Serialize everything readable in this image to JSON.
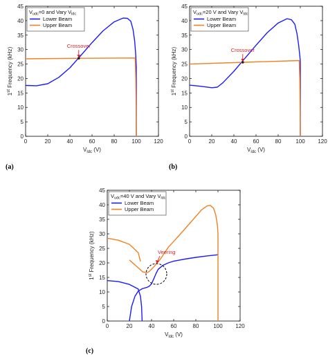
{
  "colors": {
    "lower": "#1a1aff",
    "upper": "#f08020",
    "annotation": "#e02020"
  },
  "chart_data": [
    {
      "panel_label": "(a)",
      "type": "line",
      "title": "V_udc=0 and Vary V_ldc",
      "title_parts": {
        "pre": "V",
        "sub1": "udc",
        "mid": "=0 and Vary V",
        "sub2": "ldc"
      },
      "xlabel": {
        "main": "V",
        "sub": "ldc",
        "unit": " (V)"
      },
      "ylabel": {
        "pre": "1",
        "sup": "st",
        "post": " Frequency (kHz)"
      },
      "xlim": [
        0,
        120
      ],
      "ylim": [
        0,
        45
      ],
      "xticks": [
        0,
        20,
        40,
        60,
        80,
        100,
        120
      ],
      "yticks": [
        0,
        5,
        10,
        15,
        20,
        25,
        30,
        35,
        40,
        45
      ],
      "legend_position": "top-left",
      "annotation": {
        "text": "Crossover",
        "x": 48,
        "y": 27
      },
      "series": [
        {
          "name": "Lower Beam",
          "color": "#1a1aff",
          "points": [
            [
              0,
              17.6
            ],
            [
              10,
              17.5
            ],
            [
              20,
              18.2
            ],
            [
              30,
              20.4
            ],
            [
              40,
              23.7
            ],
            [
              50,
              28
            ],
            [
              60,
              32.4
            ],
            [
              70,
              36.5
            ],
            [
              80,
              39.6
            ],
            [
              88,
              40.9
            ],
            [
              92,
              40.8
            ],
            [
              95,
              39.8
            ],
            [
              97,
              37
            ],
            [
              98.5,
              33
            ],
            [
              99.5,
              28
            ],
            [
              100,
              24
            ],
            [
              100,
              0
            ]
          ]
        },
        {
          "name": "Upper Beam",
          "color": "#f08020",
          "points": [
            [
              0,
              26.8
            ],
            [
              50,
              27
            ],
            [
              99,
              27.1
            ],
            [
              99.5,
              20
            ],
            [
              99.8,
              10
            ],
            [
              100,
              0
            ]
          ]
        }
      ]
    },
    {
      "panel_label": "(b)",
      "type": "line",
      "title": "V_udc=20 V and Vary V_ldc",
      "title_parts": {
        "pre": "V",
        "sub1": "udc",
        "mid": "=20 V and Vary V",
        "sub2": "ldc"
      },
      "xlabel": {
        "main": "V",
        "sub": "ldc",
        "unit": " (V)"
      },
      "ylabel": {
        "pre": "1",
        "sup": "st",
        "post": " Frequency (kHz)"
      },
      "xlim": [
        0,
        120
      ],
      "ylim": [
        0,
        45
      ],
      "xticks": [
        0,
        20,
        40,
        60,
        80,
        100,
        120
      ],
      "yticks": [
        0,
        5,
        10,
        15,
        20,
        25,
        30,
        35,
        40,
        45
      ],
      "legend_position": "top-left",
      "annotation": {
        "text": "Crossover",
        "x": 48,
        "y": 25.6
      },
      "series": [
        {
          "name": "Lower Beam",
          "color": "#1a1aff",
          "points": [
            [
              0,
              17.7
            ],
            [
              10,
              17.3
            ],
            [
              20,
              16.8
            ],
            [
              25,
              17
            ],
            [
              30,
              18.5
            ],
            [
              40,
              22.5
            ],
            [
              50,
              27
            ],
            [
              60,
              31.5
            ],
            [
              70,
              35.8
            ],
            [
              80,
              39.2
            ],
            [
              88,
              40.7
            ],
            [
              92,
              40.3
            ],
            [
              95,
              38.8
            ],
            [
              97,
              35.5
            ],
            [
              98.5,
              31.5
            ],
            [
              99.5,
              28
            ],
            [
              100,
              26
            ],
            [
              100,
              0
            ]
          ]
        },
        {
          "name": "Upper Beam",
          "color": "#f08020",
          "points": [
            [
              0,
              25
            ],
            [
              50,
              25.6
            ],
            [
              99,
              26.2
            ],
            [
              99.5,
              20
            ],
            [
              99.8,
              10
            ],
            [
              100,
              0
            ]
          ]
        }
      ]
    },
    {
      "panel_label": "(c)",
      "type": "line",
      "title": "V_udc=40 V and Vary V_ldc",
      "title_parts": {
        "pre": "V",
        "sub1": "udc",
        "mid": "=40 V and Vary V",
        "sub2": "ldc"
      },
      "xlabel": {
        "main": "V",
        "sub": "ldc",
        "unit": " (V)"
      },
      "ylabel": {
        "pre": "1",
        "sup": "st",
        "post": " Frequency (kHz)"
      },
      "xlim": [
        0,
        120
      ],
      "ylim": [
        0,
        45
      ],
      "xticks": [
        0,
        20,
        40,
        60,
        80,
        100,
        120
      ],
      "yticks": [
        0,
        5,
        10,
        15,
        20,
        25,
        30,
        35,
        40,
        45
      ],
      "legend_position": "top-left",
      "annotation": {
        "text": "Veering",
        "x": 50,
        "y": 20
      },
      "series": [
        {
          "name": "Lower Beam",
          "color": "#1a1aff",
          "segments": [
            [
              [
                0,
                13.9
              ],
              [
                10,
                13.6
              ],
              [
                20,
                12.6
              ],
              [
                28,
                11
              ],
              [
                30,
                8.5
              ],
              [
                31,
                5
              ],
              [
                31.5,
                0
              ]
            ],
            [
              [
                20,
                0
              ],
              [
                22,
                5
              ],
              [
                25,
                8.5
              ],
              [
                28,
                10.3
              ],
              [
                32,
                11.2
              ],
              [
                36,
                11.6
              ],
              [
                38,
                12
              ],
              [
                40,
                12.8
              ],
              [
                42,
                14.5
              ],
              [
                44,
                16.3
              ],
              [
                46,
                17.8
              ],
              [
                50,
                19.1
              ],
              [
                55,
                20
              ],
              [
                60,
                20.6
              ],
              [
                70,
                21.3
              ],
              [
                80,
                21.9
              ],
              [
                90,
                22.4
              ],
              [
                100,
                22.8
              ]
            ]
          ]
        },
        {
          "name": "Upper Beam",
          "color": "#f08020",
          "segments": [
            [
              [
                0,
                28.5
              ],
              [
                10,
                27.8
              ],
              [
                20,
                26.4
              ],
              [
                28,
                23.5
              ],
              [
                30,
                20.5
              ]
            ],
            [
              [
                20,
                21
              ],
              [
                28,
                18.3
              ],
              [
                32,
                16.9
              ],
              [
                36,
                16.7
              ],
              [
                38,
                17.1
              ],
              [
                42,
                18.6
              ],
              [
                48,
                21.3
              ],
              [
                55,
                25.3
              ],
              [
                65,
                29.5
              ],
              [
                75,
                33.8
              ],
              [
                85,
                38.2
              ],
              [
                90,
                39.6
              ],
              [
                93,
                39.8
              ],
              [
                96,
                38.8
              ],
              [
                98,
                36.5
              ],
              [
                99.5,
                33
              ],
              [
                100,
                30
              ],
              [
                100,
                0
              ]
            ]
          ]
        }
      ]
    }
  ]
}
